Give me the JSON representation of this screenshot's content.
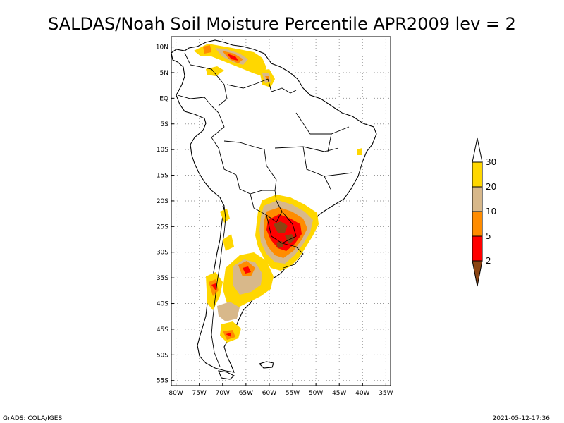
{
  "title": "SALDAS/Noah Soil Moisture Percentile APR2009 lev = 2",
  "map": {
    "lat_labels": [
      "10N",
      "5N",
      "EQ",
      "5S",
      "10S",
      "15S",
      "20S",
      "25S",
      "30S",
      "35S",
      "40S",
      "45S",
      "50S",
      "55S"
    ],
    "lat_values": [
      10,
      5,
      0,
      -5,
      -10,
      -15,
      -20,
      -25,
      -30,
      -35,
      -40,
      -45,
      -50,
      -55
    ],
    "lon_labels": [
      "80W",
      "75W",
      "70W",
      "65W",
      "60W",
      "55W",
      "50W",
      "45W",
      "40W",
      "35W"
    ],
    "lon_values": [
      -80,
      -75,
      -70,
      -65,
      -60,
      -55,
      -50,
      -45,
      -40,
      -35
    ],
    "lon_range": [
      -81,
      -34
    ],
    "lat_range": [
      -56,
      12
    ]
  },
  "legend": {
    "labels": [
      "30",
      "20",
      "10",
      "5",
      "2"
    ],
    "colors": {
      "above30": "#ffffff",
      "c20_30": "#ffd700",
      "c10_20": "#d8b88a",
      "c5_10": "#ff8c00",
      "c2_5": "#ff0000",
      "below2": "#8b4513"
    }
  },
  "footer": {
    "left": "GrADS: COLA/IGES",
    "right": "2021-05-12-17:36"
  }
}
